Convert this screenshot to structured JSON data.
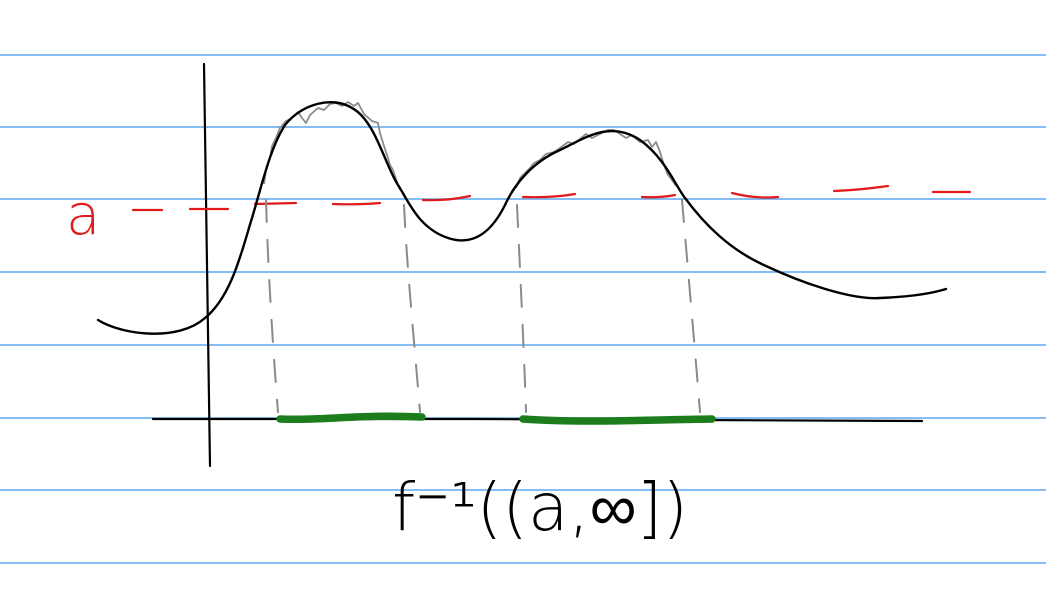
{
  "diagram": {
    "level_label": "a",
    "preimage_label": "f⁻¹((a,∞])"
  },
  "colors": {
    "ruled_line": "#5aa7ee",
    "axes": "#000000",
    "function_curve": "#000000",
    "rough_curve": "#8a8a8a",
    "level_line": "#e11b1b",
    "projection_guides": "#8a8a8a",
    "preimage_segments": "#1d7d1d"
  }
}
